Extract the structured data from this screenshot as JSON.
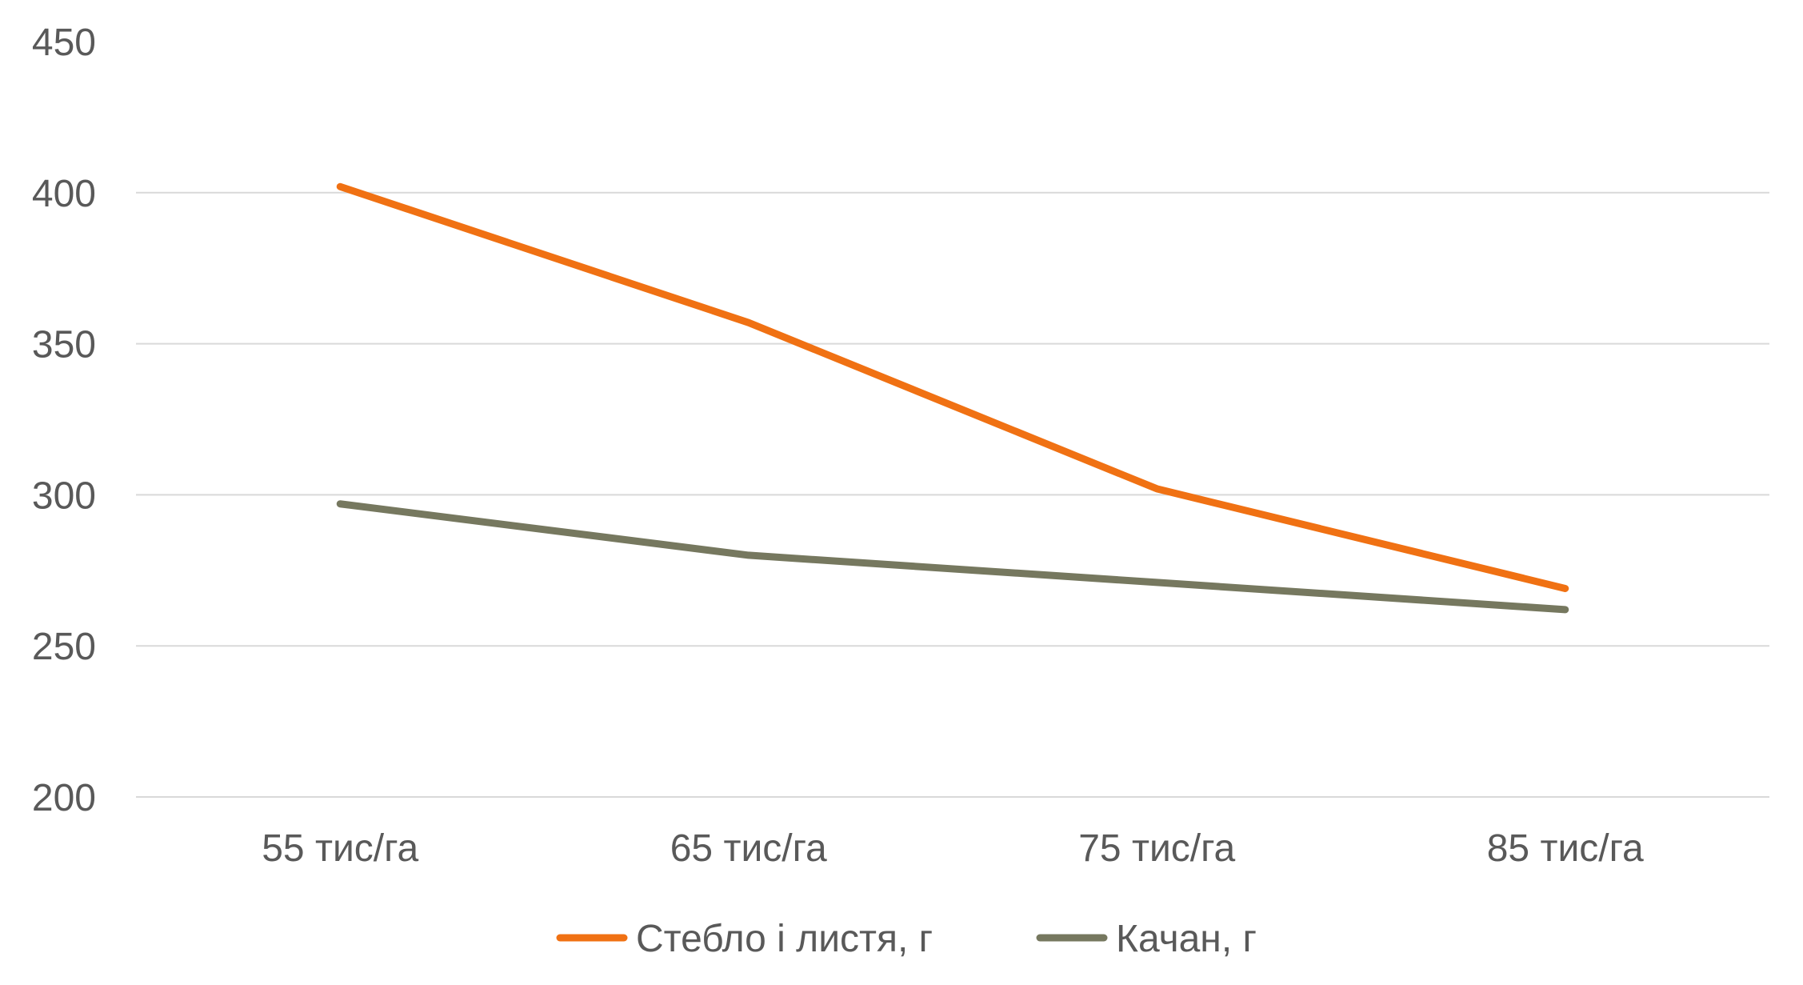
{
  "chart_data": {
    "type": "line",
    "title": "",
    "xlabel": "",
    "ylabel": "",
    "categories": [
      "55 тис/га",
      "65 тис/га",
      "75 тис/га",
      "85 тис/га"
    ],
    "y_ticks": [
      200,
      250,
      300,
      350,
      400,
      450
    ],
    "ylim": [
      200,
      450
    ],
    "grid": true,
    "legend_position": "bottom",
    "series": [
      {
        "name": "Стебло і листя, г",
        "color": "#F07113",
        "values": [
          402,
          357,
          302,
          269
        ]
      },
      {
        "name": "Качан, г",
        "color": "#76785F",
        "values": [
          297,
          280,
          271,
          262
        ]
      }
    ]
  }
}
